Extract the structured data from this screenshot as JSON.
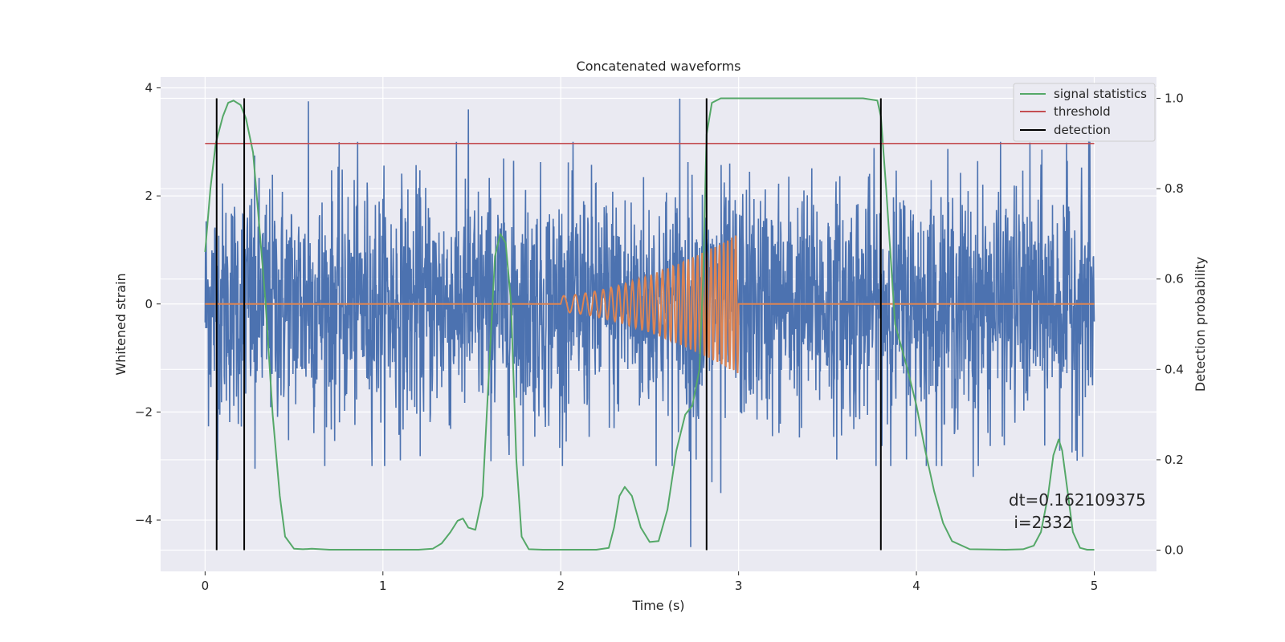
{
  "chart_data": {
    "type": "line",
    "title": "Concatenated waveforms",
    "xlabel": "Time (s)",
    "ylabel": "Whitened strain",
    "y2label": "Detection probability",
    "xlim": [
      -0.25,
      5.35
    ],
    "ylim": [
      -4.95,
      4.2
    ],
    "y2lim": [
      -0.047,
      1.047
    ],
    "x_ticks": [
      0,
      1,
      2,
      3,
      4,
      5
    ],
    "y_ticks": [
      -4,
      -2,
      0,
      2,
      4
    ],
    "y2_ticks": [
      0.0,
      0.2,
      0.4,
      0.6,
      0.8,
      1.0
    ],
    "x_tick_labels": [
      "0",
      "1",
      "2",
      "3",
      "4",
      "5"
    ],
    "y_tick_labels": [
      "−4",
      "−2",
      "0",
      "2",
      "4"
    ],
    "y2_tick_labels": [
      "0.0",
      "0.2",
      "0.4",
      "0.6",
      "0.8",
      "1.0"
    ],
    "grid": true,
    "legend_position": "top-right",
    "legend": [
      {
        "label": "signal statistics",
        "color": "#55a868"
      },
      {
        "label": "threshold",
        "color": "#c44e52"
      },
      {
        "label": "detection",
        "color": "#000000"
      }
    ],
    "strain_series": {
      "color": "#4c72b0",
      "x_range": [
        0,
        5
      ],
      "typical_amplitude": 1.1,
      "peaks": [
        {
          "x": 0.58,
          "y": 3.75
        },
        {
          "x": 1.48,
          "y": 3.6
        },
        {
          "x": 2.67,
          "y": 3.8
        },
        {
          "x": 2.73,
          "y": -4.5
        },
        {
          "x": 2.85,
          "y": -3.3
        },
        {
          "x": 2.9,
          "y": -3.5
        },
        {
          "x": 0.28,
          "y": -3.05
        },
        {
          "x": 4.32,
          "y": -3.2
        },
        {
          "x": 4.97,
          "y": 3.25
        }
      ]
    },
    "template_series": {
      "color": "#dd8452",
      "x_range": [
        0,
        5
      ],
      "chirp_start": 2.0,
      "chirp_end": 3.0,
      "amplitude_start": 0.15,
      "amplitude_end": 1.3
    },
    "signal_statistics": {
      "color": "#55a868",
      "axis": "right",
      "x": [
        0,
        0.03,
        0.06,
        0.1,
        0.13,
        0.16,
        0.2,
        0.23,
        0.27,
        0.3,
        0.34,
        0.38,
        0.42,
        0.45,
        0.5,
        0.55,
        0.6,
        0.7,
        0.8,
        1.0,
        1.2,
        1.28,
        1.33,
        1.38,
        1.42,
        1.45,
        1.48,
        1.52,
        1.56,
        1.6,
        1.63,
        1.66,
        1.69,
        1.72,
        1.75,
        1.78,
        1.82,
        1.9,
        2.0,
        2.2,
        2.27,
        2.3,
        2.33,
        2.36,
        2.4,
        2.45,
        2.5,
        2.55,
        2.6,
        2.65,
        2.7,
        2.74,
        2.78,
        2.8,
        2.82,
        2.85,
        2.9,
        3.0,
        3.5,
        3.7,
        3.78,
        3.8,
        3.83,
        3.88,
        3.95,
        4.0,
        4.05,
        4.1,
        4.15,
        4.2,
        4.3,
        4.5,
        4.6,
        4.66,
        4.7,
        4.74,
        4.77,
        4.8,
        4.82,
        4.85,
        4.88,
        4.92,
        4.96,
        5.0
      ],
      "y": [
        0.66,
        0.8,
        0.9,
        0.96,
        0.99,
        0.995,
        0.985,
        0.955,
        0.88,
        0.74,
        0.55,
        0.3,
        0.12,
        0.03,
        0.003,
        0.002,
        0.003,
        0.001,
        0.001,
        0.001,
        0.001,
        0.003,
        0.015,
        0.04,
        0.065,
        0.07,
        0.05,
        0.045,
        0.12,
        0.42,
        0.65,
        0.7,
        0.68,
        0.55,
        0.2,
        0.03,
        0.002,
        0.001,
        0.001,
        0.001,
        0.005,
        0.05,
        0.12,
        0.14,
        0.12,
        0.05,
        0.018,
        0.02,
        0.09,
        0.22,
        0.3,
        0.32,
        0.4,
        0.6,
        0.92,
        0.99,
        1.0,
        1.0,
        1.0,
        1.0,
        0.995,
        0.96,
        0.8,
        0.5,
        0.4,
        0.32,
        0.22,
        0.13,
        0.06,
        0.02,
        0.002,
        0.001,
        0.002,
        0.01,
        0.04,
        0.12,
        0.21,
        0.245,
        0.22,
        0.13,
        0.04,
        0.005,
        0.001,
        0.001
      ]
    },
    "threshold": {
      "value": 0.9,
      "axis": "right",
      "x_range": [
        0,
        5
      ],
      "color": "#c44e52"
    },
    "detections": {
      "x": [
        0.065,
        0.22,
        2.82,
        3.8
      ],
      "color": "#000000"
    },
    "annotation": {
      "lines": [
        "dt=0.162109375",
        " i=2332"
      ],
      "x": 4.52,
      "y": -4.2
    }
  }
}
